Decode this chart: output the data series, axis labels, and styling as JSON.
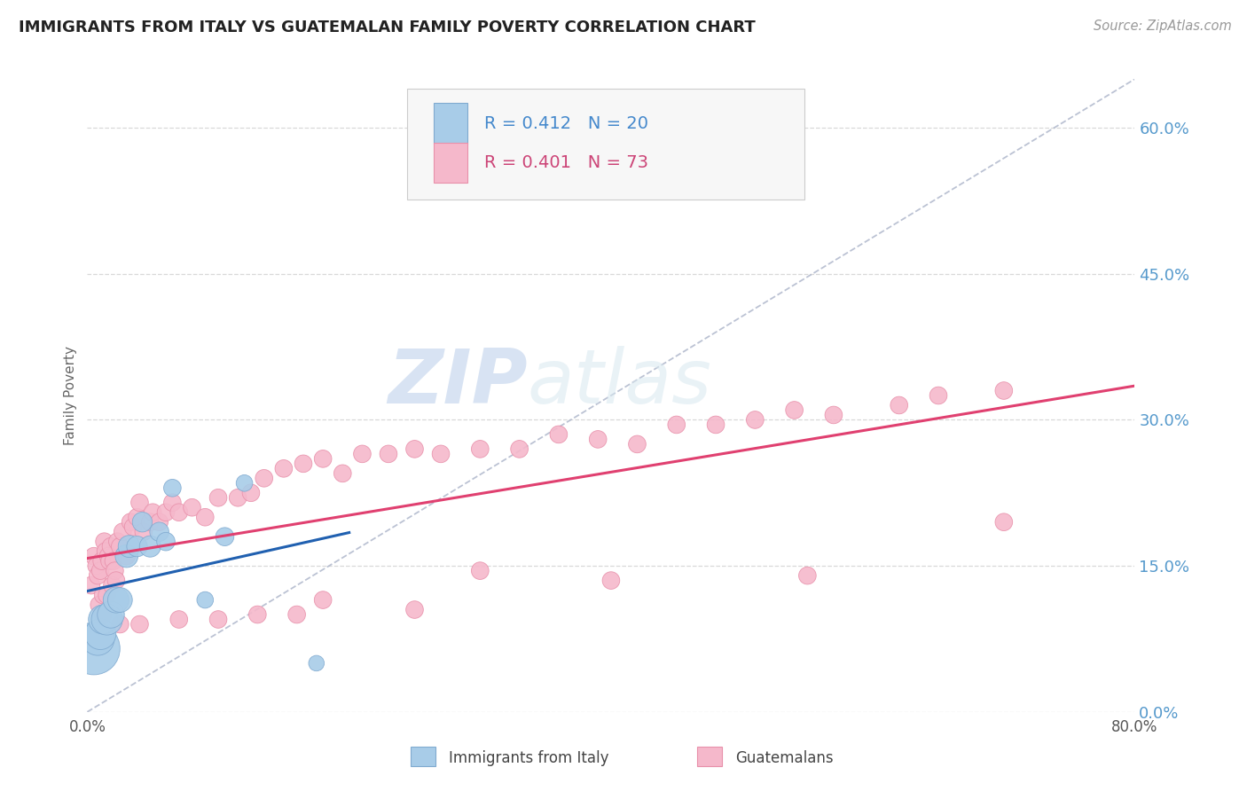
{
  "title": "IMMIGRANTS FROM ITALY VS GUATEMALAN FAMILY POVERTY CORRELATION CHART",
  "source_text": "Source: ZipAtlas.com",
  "watermark_zip": "ZIP",
  "watermark_atlas": "atlas",
  "ylabel": "Family Poverty",
  "xlim": [
    0.0,
    0.8
  ],
  "ylim": [
    0.0,
    0.65
  ],
  "yticks": [
    0.0,
    0.15,
    0.3,
    0.45,
    0.6
  ],
  "xtick_labels_show": [
    "0.0%",
    "80.0%"
  ],
  "legend_text1": "R = 0.412   N = 20",
  "legend_text2": "R = 0.401   N = 73",
  "legend_r1": "R = 0.412",
  "legend_n1": "N = 20",
  "legend_r2": "R = 0.401",
  "legend_n2": "N = 73",
  "blue_color": "#a8cce8",
  "pink_color": "#f5b8cb",
  "blue_edge": "#80aad0",
  "pink_edge": "#e890aa",
  "trend_blue": "#2060b0",
  "trend_pink": "#e04070",
  "ref_line_color": "#b0b8cc",
  "background_color": "#ffffff",
  "grid_color": "#d8d8d8",
  "italy_x": [
    0.005,
    0.008,
    0.01,
    0.012,
    0.015,
    0.018,
    0.022,
    0.025,
    0.03,
    0.032,
    0.038,
    0.042,
    0.048,
    0.055,
    0.06,
    0.065,
    0.09,
    0.105,
    0.12,
    0.175
  ],
  "italy_y": [
    0.065,
    0.075,
    0.08,
    0.095,
    0.095,
    0.1,
    0.115,
    0.115,
    0.16,
    0.17,
    0.17,
    0.195,
    0.17,
    0.185,
    0.175,
    0.23,
    0.115,
    0.18,
    0.235,
    0.05
  ],
  "italy_size": [
    450,
    180,
    160,
    140,
    160,
    120,
    110,
    100,
    85,
    80,
    70,
    65,
    75,
    60,
    55,
    50,
    45,
    55,
    45,
    40
  ],
  "guatemala_x": [
    0.003,
    0.005,
    0.007,
    0.008,
    0.009,
    0.01,
    0.011,
    0.012,
    0.013,
    0.014,
    0.015,
    0.016,
    0.017,
    0.018,
    0.019,
    0.02,
    0.021,
    0.022,
    0.023,
    0.025,
    0.027,
    0.03,
    0.033,
    0.035,
    0.038,
    0.04,
    0.043,
    0.048,
    0.05,
    0.055,
    0.06,
    0.065,
    0.07,
    0.08,
    0.09,
    0.1,
    0.115,
    0.125,
    0.135,
    0.15,
    0.165,
    0.18,
    0.195,
    0.21,
    0.23,
    0.25,
    0.27,
    0.3,
    0.33,
    0.36,
    0.39,
    0.42,
    0.45,
    0.48,
    0.51,
    0.54,
    0.57,
    0.62,
    0.65,
    0.7,
    0.4,
    0.55,
    0.7,
    0.3,
    0.18,
    0.25,
    0.16,
    0.13,
    0.1,
    0.07,
    0.04,
    0.025,
    0.012
  ],
  "guatemala_y": [
    0.13,
    0.16,
    0.15,
    0.14,
    0.11,
    0.145,
    0.155,
    0.12,
    0.175,
    0.165,
    0.12,
    0.16,
    0.155,
    0.17,
    0.13,
    0.155,
    0.145,
    0.135,
    0.175,
    0.17,
    0.185,
    0.16,
    0.195,
    0.19,
    0.2,
    0.215,
    0.185,
    0.195,
    0.205,
    0.195,
    0.205,
    0.215,
    0.205,
    0.21,
    0.2,
    0.22,
    0.22,
    0.225,
    0.24,
    0.25,
    0.255,
    0.26,
    0.245,
    0.265,
    0.265,
    0.27,
    0.265,
    0.27,
    0.27,
    0.285,
    0.28,
    0.275,
    0.295,
    0.295,
    0.3,
    0.31,
    0.305,
    0.315,
    0.325,
    0.33,
    0.135,
    0.14,
    0.195,
    0.145,
    0.115,
    0.105,
    0.1,
    0.1,
    0.095,
    0.095,
    0.09,
    0.09,
    0.1
  ],
  "guatemala_size": [
    50,
    50,
    50,
    50,
    50,
    50,
    50,
    50,
    50,
    50,
    50,
    50,
    50,
    50,
    50,
    50,
    50,
    50,
    50,
    50,
    50,
    50,
    50,
    50,
    50,
    50,
    50,
    50,
    50,
    50,
    50,
    50,
    50,
    50,
    50,
    50,
    50,
    50,
    50,
    50,
    50,
    50,
    50,
    50,
    50,
    50,
    50,
    50,
    50,
    50,
    50,
    50,
    50,
    50,
    50,
    50,
    50,
    50,
    50,
    50,
    50,
    50,
    50,
    50,
    50,
    50,
    50,
    50,
    50,
    50,
    50,
    50,
    50
  ]
}
